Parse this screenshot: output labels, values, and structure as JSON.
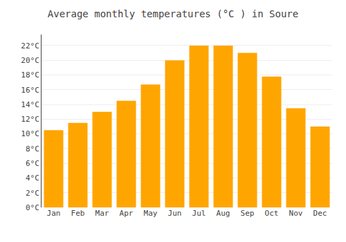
{
  "chart_data": {
    "type": "bar",
    "title": "Average monthly temperatures (°C ) in Soure",
    "categories": [
      "Jan",
      "Feb",
      "Mar",
      "Apr",
      "May",
      "Jun",
      "Jul",
      "Aug",
      "Sep",
      "Oct",
      "Nov",
      "Dec"
    ],
    "values": [
      10.5,
      11.5,
      13.0,
      14.5,
      16.7,
      20.0,
      22.0,
      22.0,
      21.0,
      17.8,
      13.5,
      11.0
    ],
    "color": "#FFA500",
    "ylim": [
      0,
      23.5
    ],
    "yticks": [
      {
        "value": 0,
        "label": "0°C"
      },
      {
        "value": 2,
        "label": "2°C"
      },
      {
        "value": 4,
        "label": "4°C"
      },
      {
        "value": 6,
        "label": "6°C"
      },
      {
        "value": 8,
        "label": "8°C"
      },
      {
        "value": 10,
        "label": "10°C"
      },
      {
        "value": 12,
        "label": "12°C"
      },
      {
        "value": 14,
        "label": "14°C"
      },
      {
        "value": 16,
        "label": "16°C"
      },
      {
        "value": 18,
        "label": "18°C"
      },
      {
        "value": 20,
        "label": "20°C"
      },
      {
        "value": 22,
        "label": "22°C"
      }
    ],
    "grid": true
  }
}
